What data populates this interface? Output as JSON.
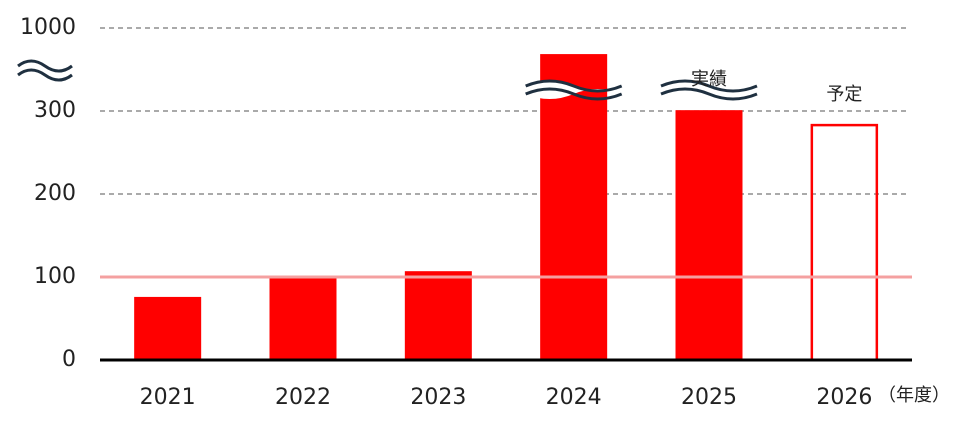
{
  "chart_data": {
    "type": "bar",
    "categories": [
      "2021",
      "2022",
      "2023",
      "2024",
      "2025",
      "2026"
    ],
    "values": [
      76,
      99,
      107,
      780,
      307,
      283
    ],
    "filled": [
      true,
      true,
      true,
      true,
      true,
      false
    ],
    "color": "#ff0000",
    "ylim": [
      0,
      1000
    ],
    "yticks": [
      0,
      100,
      200,
      300,
      1000
    ],
    "y_break": [
      300,
      1000
    ],
    "grid": true,
    "reference_line": {
      "value": 100,
      "color": "#f4a0a0"
    },
    "x_label": "（年度）",
    "annotations": [
      {
        "text": "実績",
        "category": 4
      },
      {
        "text": "予定",
        "category": 5
      }
    ]
  }
}
